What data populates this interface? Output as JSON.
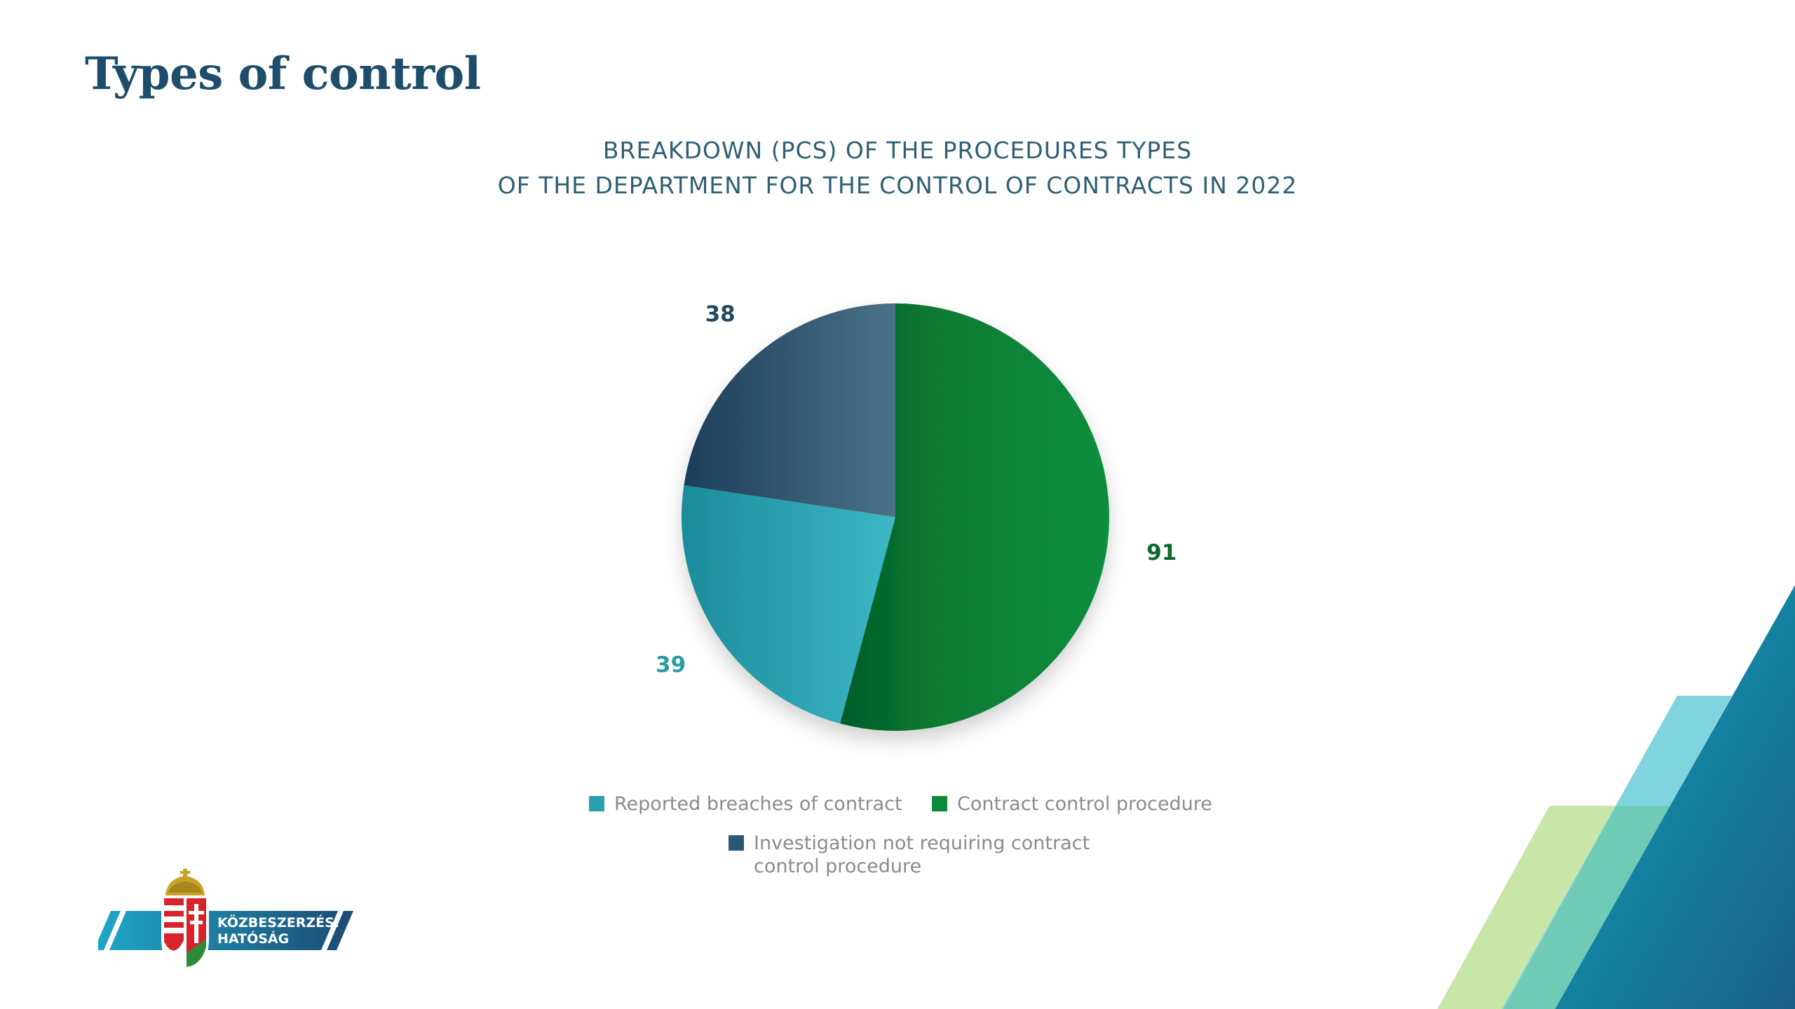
{
  "slide": {
    "title": "Types of control"
  },
  "chart_data": {
    "type": "pie",
    "title_lines": [
      "BREAKDOWN (PCS) OF THE PROCEDURES TYPES",
      "OF THE DEPARTMENT FOR THE CONTROL OF CONTRACTS IN 2022"
    ],
    "slices": [
      {
        "name": "Contract control procedure",
        "value": 91,
        "label": "91",
        "color": "#0a8a3a"
      },
      {
        "name": "Reported breaches of contract",
        "value": 39,
        "label": "39",
        "color": "#2aa0ae"
      },
      {
        "name": "Investigation not requiring contract control procedure",
        "value": 38,
        "label": "38",
        "color": "#2c5672"
      }
    ],
    "legend_placement": "bottom"
  },
  "legend": {
    "item_breaches": "Reported breaches of contract",
    "item_contract": "Contract control procedure",
    "item_investigation_line1": "Investigation not requiring contract",
    "item_investigation_line2": "control procedure"
  },
  "logo": {
    "line1": "KÖZBESZERZÉSI",
    "line2": "HATÓSÁG"
  }
}
